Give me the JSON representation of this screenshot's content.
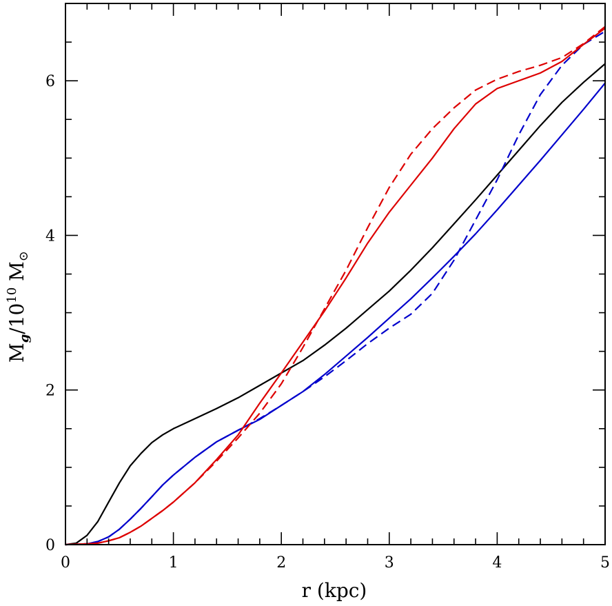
{
  "chart_data": {
    "type": "line",
    "xlabel": "r (kpc)",
    "ylabel": {
      "main": "M",
      "sub": "g",
      "slash": "/10",
      "sup": "10",
      "unit": " M",
      "symbol": "⊙"
    },
    "xlim": [
      0,
      5
    ],
    "ylim": [
      0,
      7
    ],
    "x_ticks": [
      "0",
      "1",
      "2",
      "3",
      "4",
      "5"
    ],
    "y_ticks": [
      "0",
      "2",
      "4",
      "6"
    ],
    "grid": false,
    "series": [
      {
        "color": "#000000",
        "dash": "solid",
        "points": [
          [
            0,
            0
          ],
          [
            0.1,
            0.02
          ],
          [
            0.2,
            0.12
          ],
          [
            0.3,
            0.3
          ],
          [
            0.4,
            0.55
          ],
          [
            0.5,
            0.8
          ],
          [
            0.6,
            1.02
          ],
          [
            0.7,
            1.18
          ],
          [
            0.8,
            1.32
          ],
          [
            0.9,
            1.42
          ],
          [
            1.0,
            1.5
          ],
          [
            1.2,
            1.63
          ],
          [
            1.4,
            1.76
          ],
          [
            1.6,
            1.9
          ],
          [
            1.8,
            2.06
          ],
          [
            2.0,
            2.22
          ],
          [
            2.2,
            2.38
          ],
          [
            2.4,
            2.58
          ],
          [
            2.6,
            2.8
          ],
          [
            2.8,
            3.04
          ],
          [
            3.0,
            3.28
          ],
          [
            3.2,
            3.55
          ],
          [
            3.4,
            3.84
          ],
          [
            3.6,
            4.15
          ],
          [
            3.8,
            4.46
          ],
          [
            4.0,
            4.78
          ],
          [
            4.2,
            5.1
          ],
          [
            4.4,
            5.42
          ],
          [
            4.6,
            5.72
          ],
          [
            4.8,
            5.98
          ],
          [
            5.0,
            6.22
          ]
        ]
      },
      {
        "color": "#0000cc",
        "dash": "solid",
        "points": [
          [
            0,
            0
          ],
          [
            0.2,
            0.01
          ],
          [
            0.3,
            0.04
          ],
          [
            0.4,
            0.1
          ],
          [
            0.5,
            0.2
          ],
          [
            0.6,
            0.33
          ],
          [
            0.7,
            0.47
          ],
          [
            0.8,
            0.62
          ],
          [
            0.9,
            0.77
          ],
          [
            1.0,
            0.9
          ],
          [
            1.2,
            1.13
          ],
          [
            1.4,
            1.33
          ],
          [
            1.6,
            1.48
          ],
          [
            1.8,
            1.62
          ],
          [
            2.0,
            1.8
          ],
          [
            2.2,
            1.98
          ],
          [
            2.4,
            2.2
          ],
          [
            2.6,
            2.44
          ],
          [
            2.8,
            2.68
          ],
          [
            3.0,
            2.93
          ],
          [
            3.2,
            3.18
          ],
          [
            3.4,
            3.45
          ],
          [
            3.6,
            3.73
          ],
          [
            3.8,
            4.02
          ],
          [
            4.0,
            4.33
          ],
          [
            4.2,
            4.65
          ],
          [
            4.4,
            4.97
          ],
          [
            4.6,
            5.3
          ],
          [
            4.8,
            5.63
          ],
          [
            5.0,
            5.97
          ]
        ]
      },
      {
        "color": "#0000cc",
        "dash": "dashed",
        "points": [
          [
            0,
            0
          ],
          [
            0.2,
            0.01
          ],
          [
            0.3,
            0.04
          ],
          [
            0.4,
            0.1
          ],
          [
            0.5,
            0.2
          ],
          [
            0.6,
            0.33
          ],
          [
            0.7,
            0.47
          ],
          [
            0.8,
            0.62
          ],
          [
            0.9,
            0.77
          ],
          [
            1.0,
            0.9
          ],
          [
            1.2,
            1.13
          ],
          [
            1.4,
            1.33
          ],
          [
            1.6,
            1.48
          ],
          [
            1.8,
            1.63
          ],
          [
            2.0,
            1.8
          ],
          [
            2.2,
            1.98
          ],
          [
            2.4,
            2.17
          ],
          [
            2.6,
            2.38
          ],
          [
            2.8,
            2.6
          ],
          [
            3.0,
            2.8
          ],
          [
            3.2,
            2.98
          ],
          [
            3.4,
            3.25
          ],
          [
            3.6,
            3.68
          ],
          [
            3.8,
            4.2
          ],
          [
            4.0,
            4.72
          ],
          [
            4.2,
            5.3
          ],
          [
            4.4,
            5.82
          ],
          [
            4.6,
            6.2
          ],
          [
            4.8,
            6.47
          ],
          [
            5.0,
            6.64
          ]
        ]
      },
      {
        "color": "#dd0000",
        "dash": "solid",
        "points": [
          [
            0,
            0
          ],
          [
            0.2,
            0.01
          ],
          [
            0.3,
            0.02
          ],
          [
            0.4,
            0.05
          ],
          [
            0.5,
            0.09
          ],
          [
            0.6,
            0.16
          ],
          [
            0.7,
            0.24
          ],
          [
            0.8,
            0.34
          ],
          [
            0.9,
            0.44
          ],
          [
            1.0,
            0.55
          ],
          [
            1.2,
            0.8
          ],
          [
            1.4,
            1.1
          ],
          [
            1.6,
            1.42
          ],
          [
            1.8,
            1.83
          ],
          [
            2.0,
            2.22
          ],
          [
            2.2,
            2.62
          ],
          [
            2.4,
            3.02
          ],
          [
            2.6,
            3.45
          ],
          [
            2.8,
            3.9
          ],
          [
            3.0,
            4.3
          ],
          [
            3.2,
            4.65
          ],
          [
            3.4,
            5.0
          ],
          [
            3.6,
            5.38
          ],
          [
            3.8,
            5.7
          ],
          [
            4.0,
            5.9
          ],
          [
            4.2,
            6.0
          ],
          [
            4.4,
            6.1
          ],
          [
            4.6,
            6.25
          ],
          [
            4.8,
            6.47
          ],
          [
            5.0,
            6.68
          ]
        ]
      },
      {
        "color": "#dd0000",
        "dash": "dashed",
        "points": [
          [
            0,
            0
          ],
          [
            0.2,
            0.01
          ],
          [
            0.3,
            0.02
          ],
          [
            0.4,
            0.05
          ],
          [
            0.5,
            0.09
          ],
          [
            0.6,
            0.16
          ],
          [
            0.7,
            0.24
          ],
          [
            0.8,
            0.34
          ],
          [
            0.9,
            0.44
          ],
          [
            1.0,
            0.55
          ],
          [
            1.2,
            0.8
          ],
          [
            1.4,
            1.08
          ],
          [
            1.6,
            1.38
          ],
          [
            1.8,
            1.7
          ],
          [
            2.0,
            2.08
          ],
          [
            2.2,
            2.55
          ],
          [
            2.4,
            3.05
          ],
          [
            2.6,
            3.55
          ],
          [
            2.8,
            4.1
          ],
          [
            3.0,
            4.62
          ],
          [
            3.2,
            5.05
          ],
          [
            3.4,
            5.38
          ],
          [
            3.6,
            5.65
          ],
          [
            3.8,
            5.88
          ],
          [
            4.0,
            6.02
          ],
          [
            4.2,
            6.12
          ],
          [
            4.4,
            6.2
          ],
          [
            4.6,
            6.3
          ],
          [
            4.8,
            6.48
          ],
          [
            5.0,
            6.7
          ]
        ]
      }
    ]
  }
}
